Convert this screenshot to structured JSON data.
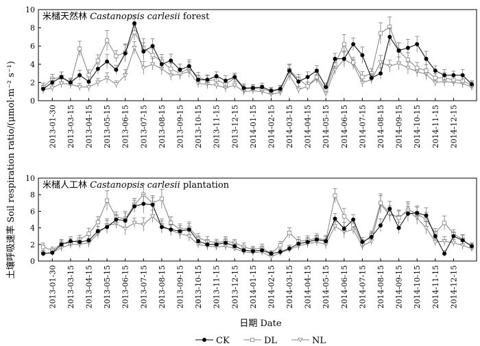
{
  "chart_data": [
    {
      "type": "line",
      "panel": "top",
      "title_cn": "米槠天然林",
      "title_en_pre": "Castanopsis carlesii",
      "title_en_post": "forest",
      "ylim": [
        0,
        10
      ],
      "yticks": [
        "0",
        "2",
        "4",
        "6",
        "8",
        "10"
      ],
      "series": [
        {
          "name": "CK",
          "values": [
            1.3,
            2.0,
            2.6,
            2.0,
            2.8,
            2.1,
            3.5,
            4.3,
            3.4,
            5.2,
            8.5,
            5.4,
            6.0,
            4.0,
            4.4,
            3.4,
            3.8,
            2.3,
            2.3,
            2.7,
            2.2,
            2.6,
            1.4,
            1.4,
            1.5,
            1.1,
            1.3,
            3.3,
            2.1,
            2.6,
            3.3,
            1.5,
            4.6,
            4.6,
            6.2,
            5.0,
            2.5,
            3.0,
            7.0,
            5.5,
            5.8,
            6.2,
            4.6,
            3.3,
            2.8,
            2.8,
            2.8,
            1.8
          ]
        },
        {
          "name": "DL",
          "values": [
            1.5,
            2.4,
            2.6,
            1.9,
            5.7,
            2.8,
            4.4,
            6.6,
            4.9,
            5.3,
            7.5,
            5.8,
            5.0,
            4.3,
            3.5,
            3.0,
            3.6,
            2.6,
            2.2,
            2.3,
            1.8,
            2.5,
            1.3,
            1.4,
            1.3,
            1.0,
            1.2,
            3.4,
            2.4,
            1.6,
            2.6,
            1.2,
            4.0,
            6.2,
            4.2,
            2.6,
            3.0,
            7.4,
            8.1,
            5.5,
            4.5,
            3.6,
            3.3,
            2.5,
            2.5,
            2.3,
            2.2,
            1.7
          ]
        },
        {
          "name": "NL",
          "values": [
            1.2,
            1.4,
            1.9,
            1.8,
            1.5,
            1.5,
            2.0,
            2.5,
            1.8,
            2.8,
            5.8,
            3.6,
            4.0,
            3.5,
            2.8,
            2.9,
            3.2,
            1.9,
            1.8,
            1.7,
            1.4,
            1.7,
            1.0,
            1.1,
            1.0,
            0.7,
            0.9,
            2.8,
            1.2,
            1.6,
            2.4,
            0.8,
            3.4,
            4.5,
            4.0,
            2.0,
            2.3,
            4.2,
            3.8,
            4.1,
            3.6,
            3.2,
            2.9,
            2.0,
            2.1,
            2.0,
            1.9,
            1.5
          ]
        }
      ]
    },
    {
      "type": "line",
      "panel": "bottom",
      "title_cn": "米槠人工林",
      "title_en_pre": "Castanopsis carlesii",
      "title_en_post": "plantation",
      "ylim": [
        0,
        10
      ],
      "yticks": [
        "0",
        "2",
        "4",
        "6",
        "8",
        "10"
      ],
      "series": [
        {
          "name": "CK",
          "values": [
            0.9,
            1.0,
            2.0,
            2.4,
            2.3,
            2.5,
            3.6,
            4.1,
            5.0,
            4.9,
            6.6,
            6.9,
            6.8,
            4.1,
            3.8,
            3.6,
            3.8,
            2.4,
            2.0,
            2.0,
            2.2,
            1.8,
            1.3,
            1.2,
            1.3,
            0.9,
            1.1,
            1.5,
            2.1,
            2.3,
            2.6,
            2.4,
            5.1,
            3.9,
            5.0,
            2.3,
            2.9,
            4.3,
            6.3,
            4.0,
            5.7,
            5.8,
            5.5,
            3.0,
            0.9,
            3.0,
            2.5,
            1.8
          ]
        },
        {
          "name": "DL",
          "values": [
            1.7,
            1.3,
            2.1,
            2.2,
            2.6,
            3.3,
            4.7,
            7.3,
            5.3,
            5.1,
            6.8,
            8.0,
            7.0,
            7.5,
            4.6,
            3.8,
            4.0,
            2.8,
            2.4,
            2.2,
            2.4,
            2.2,
            1.7,
            1.4,
            1.6,
            0.9,
            1.9,
            3.4,
            2.4,
            2.5,
            2.8,
            2.5,
            7.9,
            5.4,
            4.4,
            2.1,
            3.1,
            7.0,
            5.8,
            5.2,
            6.2,
            5.7,
            5.0,
            3.4,
            4.6,
            3.3,
            2.6,
            1.7
          ]
        },
        {
          "name": "NL",
          "values": [
            0.9,
            1.0,
            1.6,
            2.0,
            2.0,
            2.2,
            3.3,
            4.3,
            4.5,
            3.9,
            4.6,
            4.4,
            5.4,
            4.3,
            3.7,
            3.3,
            3.0,
            2.0,
            1.8,
            1.7,
            1.8,
            1.5,
            1.1,
            1.0,
            1.1,
            0.5,
            1.0,
            1.4,
            1.8,
            2.1,
            2.3,
            2.0,
            4.2,
            3.5,
            3.8,
            1.8,
            2.4,
            6.8,
            5.6,
            5.3,
            6.0,
            5.2,
            4.0,
            2.3,
            2.4,
            2.2,
            1.9,
            1.5
          ]
        }
      ]
    }
  ],
  "x_tick_labels": [
    "2013-01-30",
    "2013-03-15",
    "2013-04-15",
    "2013-05-15",
    "2013-06-15",
    "2013-07-15",
    "2013-08-15",
    "2013-09-15",
    "2013-10-15",
    "2013-11-15",
    "2013-12-15",
    "2014-01-15",
    "2014-02-15",
    "2014-03-15",
    "2014-04-15",
    "2014-05-15",
    "2014-06-15",
    "2014-07-15",
    "2014-08-15",
    "2014-09-15",
    "2014-10-15",
    "2014-11-15",
    "2014-12-15"
  ],
  "ylabel_cn": "土壤呼吸速率",
  "ylabel_en": "Soil respiration ratio/",
  "ylabel_unit": "(μmol·m⁻² s⁻¹)",
  "xlabel": "日期 Date",
  "legend": [
    "CK",
    "DL",
    "NL"
  ]
}
